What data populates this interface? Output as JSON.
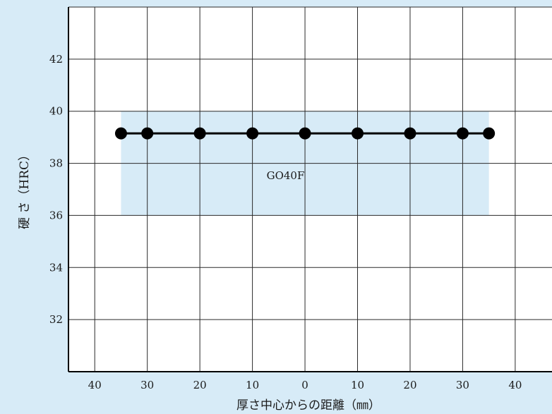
{
  "chart_data": {
    "type": "line",
    "title": "",
    "xlabel": "厚さ中心からの距離（㎜）",
    "ylabel": "硬 さ（HRC）",
    "x_tick_labels": [
      "40",
      "30",
      "20",
      "10",
      "0",
      "10",
      "20",
      "30",
      "40"
    ],
    "xlim": [
      -45,
      47
    ],
    "ylim": [
      30,
      44
    ],
    "y_ticks": [
      32,
      34,
      36,
      38,
      40,
      42
    ],
    "grid": true,
    "band": {
      "x": [
        -35,
        35
      ],
      "y": [
        36,
        40
      ],
      "color": "#d7ebf7"
    },
    "series": [
      {
        "name": "GO40F",
        "x": [
          -35,
          -30,
          -20,
          -10,
          0,
          10,
          20,
          30,
          35
        ],
        "y": [
          39.15,
          39.15,
          39.15,
          39.15,
          39.15,
          39.15,
          39.15,
          39.15,
          39.15
        ],
        "color": "#000000"
      }
    ],
    "annotations": [
      {
        "text": "GO40F",
        "x": -3.7,
        "y": 37.5
      }
    ]
  }
}
